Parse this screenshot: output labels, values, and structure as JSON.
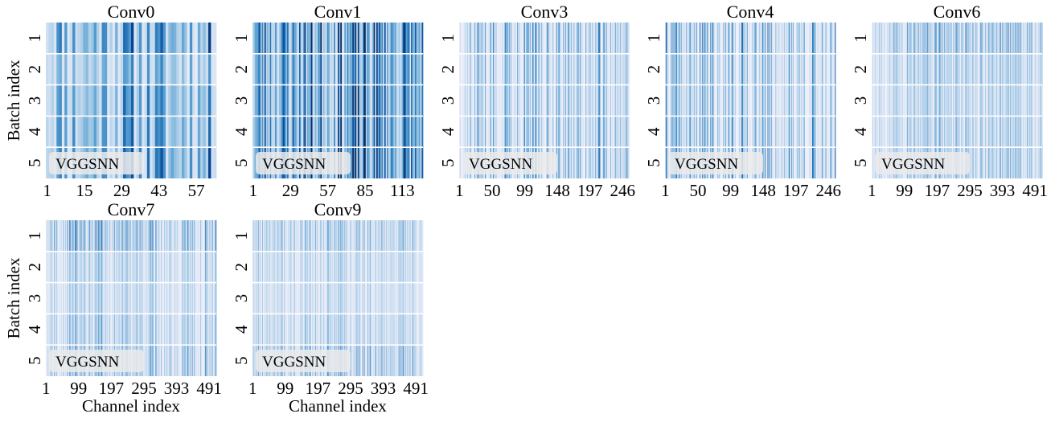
{
  "figure": {
    "row_ylabel": "Batch index",
    "col_xlabel": "Channel index"
  },
  "chart_data": [
    {
      "type": "heatmap",
      "title": "Conv0",
      "annotation": "VGGSNN",
      "ylabel": "Batch index",
      "xlabel": "",
      "channels": 64,
      "rows": [
        "1",
        "2",
        "3",
        "4",
        "5"
      ],
      "xticks": [
        "1",
        "15",
        "29",
        "43",
        "57"
      ],
      "xtick_values": [
        1,
        15,
        29,
        43,
        57
      ],
      "row_levels": [
        0.55,
        0.35,
        0.5,
        0.5,
        0.55
      ],
      "seed": 11,
      "dense": true
    },
    {
      "type": "heatmap",
      "title": "Conv1",
      "annotation": "VGGSNN",
      "ylabel": "",
      "xlabel": "",
      "channels": 128,
      "rows": [
        "1",
        "2",
        "3",
        "4",
        "5"
      ],
      "xticks": [
        "1",
        "29",
        "57",
        "85",
        "113"
      ],
      "xtick_values": [
        1,
        29,
        57,
        85,
        113
      ],
      "row_levels": [
        0.7,
        0.6,
        0.65,
        0.65,
        0.7
      ],
      "seed": 23,
      "dense": true
    },
    {
      "type": "heatmap",
      "title": "Conv3",
      "annotation": "VGGSNN",
      "ylabel": "",
      "xlabel": "",
      "channels": 256,
      "rows": [
        "1",
        "2",
        "3",
        "4",
        "5"
      ],
      "xticks": [
        "1",
        "50",
        "99",
        "148",
        "197",
        "246"
      ],
      "xtick_values": [
        1,
        50,
        99,
        148,
        197,
        246
      ],
      "row_levels": [
        0.45,
        0.35,
        0.35,
        0.4,
        0.45
      ],
      "seed": 37,
      "dense": false
    },
    {
      "type": "heatmap",
      "title": "Conv4",
      "annotation": "VGGSNN",
      "ylabel": "",
      "xlabel": "",
      "channels": 256,
      "rows": [
        "1",
        "2",
        "3",
        "4",
        "5"
      ],
      "xticks": [
        "1",
        "50",
        "99",
        "148",
        "197",
        "246"
      ],
      "xtick_values": [
        1,
        50,
        99,
        148,
        197,
        246
      ],
      "row_levels": [
        0.5,
        0.4,
        0.4,
        0.45,
        0.5
      ],
      "seed": 41,
      "dense": false
    },
    {
      "type": "heatmap",
      "title": "Conv6",
      "annotation": "VGGSNN",
      "ylabel": "",
      "xlabel": "",
      "channels": 512,
      "rows": [
        "1",
        "2",
        "3",
        "4",
        "5"
      ],
      "xticks": [
        "1",
        "99",
        "197",
        "295",
        "393",
        "491"
      ],
      "xtick_values": [
        1,
        99,
        197,
        295,
        393,
        491
      ],
      "row_levels": [
        0.5,
        0.35,
        0.3,
        0.35,
        0.4
      ],
      "seed": 53,
      "dense": false
    },
    {
      "type": "heatmap",
      "title": "Conv7",
      "annotation": "VGGSNN",
      "ylabel": "Batch index",
      "xlabel": "Channel index",
      "channels": 512,
      "rows": [
        "1",
        "2",
        "3",
        "4",
        "5"
      ],
      "xticks": [
        "1",
        "99",
        "197",
        "295",
        "393",
        "491"
      ],
      "xtick_values": [
        1,
        99,
        197,
        295,
        393,
        491
      ],
      "row_levels": [
        0.55,
        0.3,
        0.25,
        0.35,
        0.45
      ],
      "seed": 67,
      "dense": false
    },
    {
      "type": "heatmap",
      "title": "Conv9",
      "annotation": "VGGSNN",
      "ylabel": "",
      "xlabel": "Channel index",
      "channels": 512,
      "rows": [
        "1",
        "2",
        "3",
        "4",
        "5"
      ],
      "xticks": [
        "1",
        "99",
        "197",
        "295",
        "393",
        "491"
      ],
      "xtick_values": [
        1,
        99,
        197,
        295,
        393,
        491
      ],
      "row_levels": [
        0.4,
        0.25,
        0.2,
        0.3,
        0.5
      ],
      "seed": 79,
      "dense": false
    }
  ]
}
